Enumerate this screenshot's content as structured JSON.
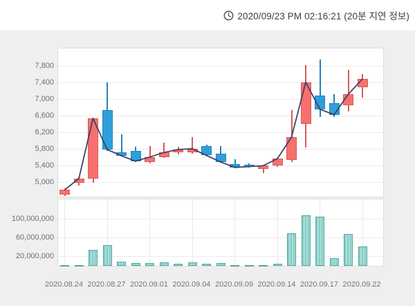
{
  "header": {
    "timestamp": "2020/09/23 PM 02:16:21 (20분 지연 정보)",
    "clock_icon": "clock-icon"
  },
  "colors": {
    "up_fill": "#f8706e",
    "up_stroke": "#da5a58",
    "down_fill": "#2f9fdb",
    "down_stroke": "#2384bb",
    "close_line": "#3f436a",
    "volume_fill": "#86cfc8",
    "volume_stripe": "#aedcd7",
    "volume_stroke": "#4fa8a0",
    "grid": "#ebebeb",
    "background": "#efefef",
    "pane_background": "#ffffff"
  },
  "chart_data": {
    "type": "candlestick",
    "panes": [
      "price",
      "volume"
    ],
    "legend_position": "none",
    "grid": "on",
    "price_axis": {
      "tick_labels": [
        "7,800",
        "7,400",
        "7,000",
        "6,600",
        "6,200",
        "5,800",
        "5,400",
        "5,000"
      ],
      "tick_values": [
        7800,
        7400,
        7000,
        6600,
        6200,
        5800,
        5400,
        5000
      ],
      "range": [
        4633,
        8233
      ]
    },
    "volume_axis": {
      "tick_labels": [
        "100,000,000",
        "60,000,000",
        "20,000,000"
      ],
      "tick_values": [
        100000000,
        60000000,
        20000000
      ],
      "range": [
        0,
        143000000
      ]
    },
    "x_axis": {
      "tick_labels": [
        "2020.08.24",
        "2020.08.27",
        "2020.09.01",
        "2020.09.04",
        "2020.09.09",
        "2020.09.14",
        "2020.09.17",
        "2020.09.22"
      ],
      "tick_indices": [
        0,
        3,
        6,
        9,
        12,
        15,
        18,
        21
      ]
    },
    "overlays": [
      "close-price-line"
    ],
    "candles": [
      {
        "date": "2020.08.24",
        "open": 4720,
        "high": 4870,
        "low": 4690,
        "close": 4830,
        "volume": 1200000
      },
      {
        "date": "2020.08.25",
        "open": 5000,
        "high": 5130,
        "low": 4940,
        "close": 5100,
        "volume": 1500000
      },
      {
        "date": "2020.08.26",
        "open": 5100,
        "high": 6570,
        "low": 5000,
        "close": 6550,
        "volume": 34000000
      },
      {
        "date": "2020.08.27",
        "open": 6750,
        "high": 7420,
        "low": 5770,
        "close": 5800,
        "volume": 44000000
      },
      {
        "date": "2020.08.28",
        "open": 5740,
        "high": 6160,
        "low": 5630,
        "close": 5650,
        "volume": 9000000
      },
      {
        "date": "2020.08.31",
        "open": 5770,
        "high": 5870,
        "low": 5500,
        "close": 5520,
        "volume": 5500000
      },
      {
        "date": "2020.09.01",
        "open": 5500,
        "high": 5880,
        "low": 5470,
        "close": 5620,
        "volume": 5500000
      },
      {
        "date": "2020.09.02",
        "open": 5620,
        "high": 5960,
        "low": 5600,
        "close": 5730,
        "volume": 8000000
      },
      {
        "date": "2020.09.03",
        "open": 5730,
        "high": 5860,
        "low": 5690,
        "close": 5800,
        "volume": 5000000
      },
      {
        "date": "2020.09.04",
        "open": 5730,
        "high": 6100,
        "low": 5700,
        "close": 5820,
        "volume": 7500000
      },
      {
        "date": "2020.09.07",
        "open": 5890,
        "high": 5910,
        "low": 5640,
        "close": 5660,
        "volume": 4000000
      },
      {
        "date": "2020.09.08",
        "open": 5700,
        "high": 5890,
        "low": 5480,
        "close": 5500,
        "volume": 6000000
      },
      {
        "date": "2020.09.09",
        "open": 5450,
        "high": 5560,
        "low": 5350,
        "close": 5370,
        "volume": 1500000
      },
      {
        "date": "2020.09.10",
        "open": 5440,
        "high": 5460,
        "low": 5360,
        "close": 5390,
        "volume": 1500000
      },
      {
        "date": "2020.09.11",
        "open": 5340,
        "high": 5430,
        "low": 5230,
        "close": 5410,
        "volume": 2000000
      },
      {
        "date": "2020.09.14",
        "open": 5410,
        "high": 5600,
        "low": 5390,
        "close": 5580,
        "volume": 4000000
      },
      {
        "date": "2020.09.15",
        "open": 5550,
        "high": 6750,
        "low": 5500,
        "close": 6100,
        "volume": 70000000
      },
      {
        "date": "2020.09.16",
        "open": 6420,
        "high": 7830,
        "low": 5850,
        "close": 7420,
        "volume": 108000000
      },
      {
        "date": "2020.09.17",
        "open": 7100,
        "high": 7970,
        "low": 6580,
        "close": 6770,
        "volume": 106000000
      },
      {
        "date": "2020.09.18",
        "open": 6910,
        "high": 7130,
        "low": 6580,
        "close": 6640,
        "volume": 17000000
      },
      {
        "date": "2020.09.21",
        "open": 6860,
        "high": 7720,
        "low": 6720,
        "close": 7130,
        "volume": 69000000
      },
      {
        "date": "2020.09.22",
        "open": 7300,
        "high": 7610,
        "low": 7050,
        "close": 7500,
        "volume": 41000000
      }
    ]
  }
}
